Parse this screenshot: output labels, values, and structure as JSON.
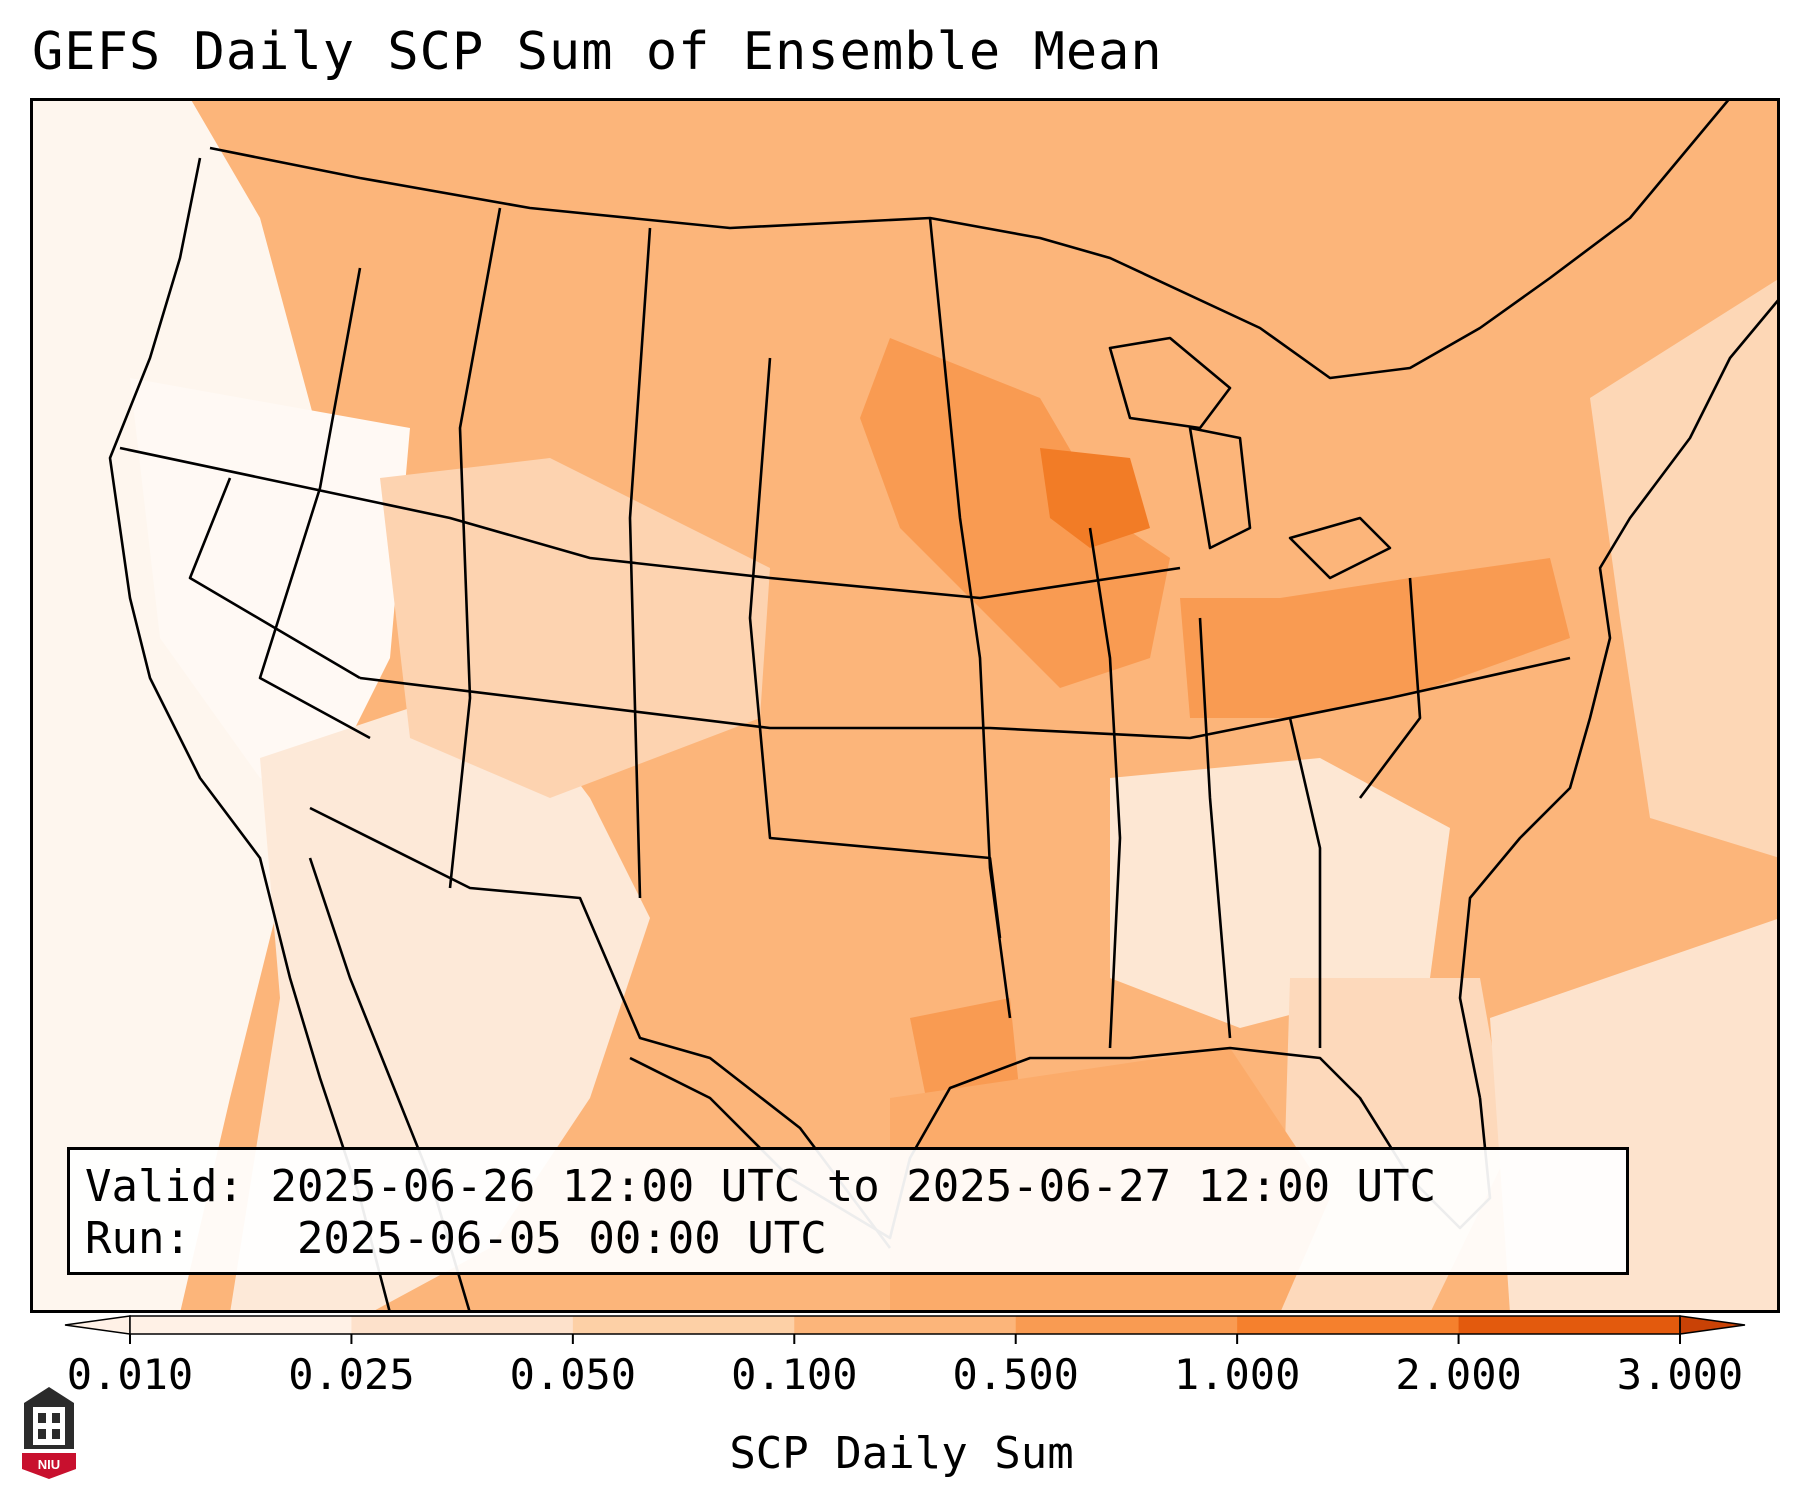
{
  "title": "GEFS Daily SCP Sum of Ensemble Mean",
  "valid_box": {
    "valid_label": "Valid:",
    "valid_value": "2025-06-26 12:00 UTC to 2025-06-27 12:00 UTC",
    "run_label": "Run:",
    "run_value": "2025-06-05 00:00 UTC"
  },
  "colorbar": {
    "label": "SCP Daily Sum",
    "ticks": [
      "0.010",
      "0.025",
      "0.050",
      "0.100",
      "0.500",
      "1.000",
      "2.000",
      "3.000"
    ],
    "colors": [
      "#fff1e6",
      "#fde1cb",
      "#fdd0a6",
      "#fcb57a",
      "#f99b52",
      "#f5802d",
      "#e35a0d",
      "#c94206"
    ],
    "extend": "both"
  },
  "logo": {
    "text": "NIU"
  },
  "map": {
    "region": "contiguous-us",
    "max_value_region": "wisconsin",
    "colors": {
      "land_light": "#fdeee2",
      "water_dark": "#fcae6e"
    }
  }
}
